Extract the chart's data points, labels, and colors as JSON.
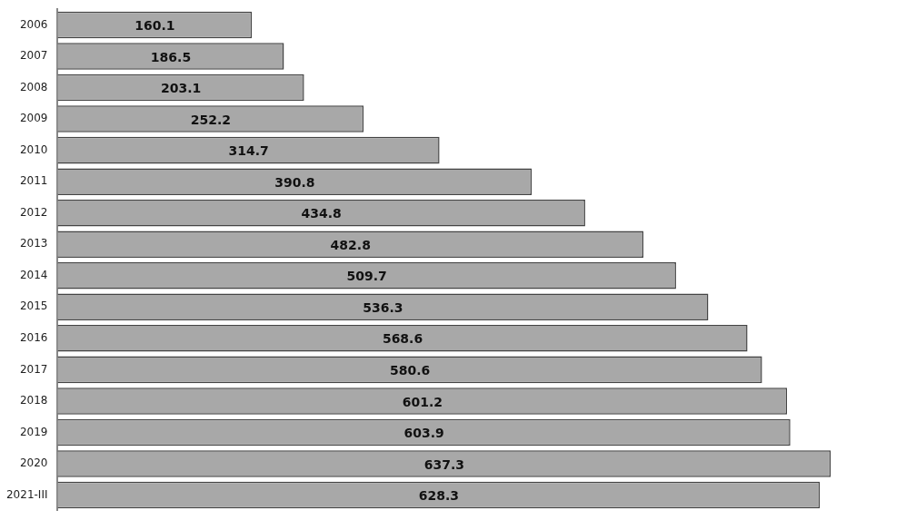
{
  "chart_data": {
    "type": "bar",
    "orientation": "horizontal",
    "categories": [
      "2006",
      "2007",
      "2008",
      "2009",
      "2010",
      "2011",
      "2012",
      "2013",
      "2014",
      "2015",
      "2016",
      "2017",
      "2018",
      "2019",
      "2020",
      "2021-III"
    ],
    "values": [
      160.1,
      186.5,
      203.1,
      252.2,
      314.7,
      390.8,
      434.8,
      482.8,
      509.7,
      536.3,
      568.6,
      580.6,
      601.2,
      603.9,
      637.3,
      628.3
    ],
    "color": "#a8a8a8",
    "data_labels": true
  }
}
